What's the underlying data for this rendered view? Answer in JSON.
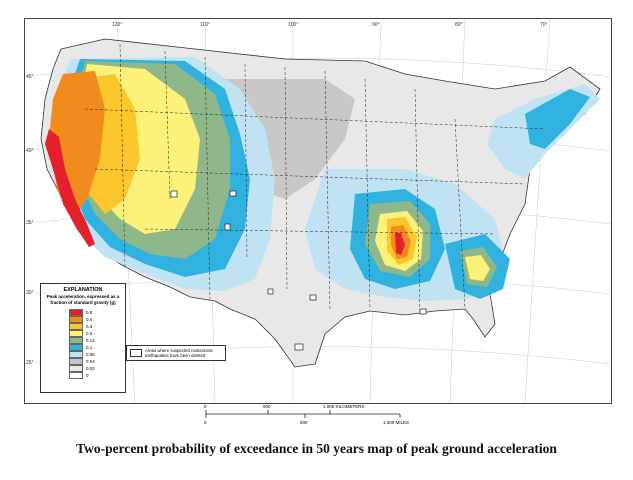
{
  "caption": "Two-percent probability of exceedance in 50 years map of peak ground acceleration",
  "legend": {
    "title": "EXPLANATION",
    "subtitle": "Peak acceleration, expressed as a fraction of standard gravity (g)",
    "classes": [
      {
        "label": "0.8",
        "color": "#e4202a"
      },
      {
        "label": "0.4",
        "color": "#f28b1d"
      },
      {
        "label": "0.3",
        "color": "#fbc52c"
      },
      {
        "label": "0.2",
        "color": "#fdf17a"
      },
      {
        "label": "0.14",
        "color": "#8fb88a"
      },
      {
        "label": "0.1",
        "color": "#2fb2df"
      },
      {
        "label": "0.06",
        "color": "#bfe3f2"
      },
      {
        "label": "0.04",
        "color": "#c4c4c4"
      },
      {
        "label": "0.02",
        "color": "#e8e8e8"
      },
      {
        "label": "0",
        "color": "#ffffff"
      }
    ],
    "deleted_note": "Areas where suspected nontectonic earthquakes have been deleted"
  },
  "longitude_labels": [
    "120°",
    "110°",
    "100°",
    "90°",
    "80°",
    "70°"
  ],
  "latitude_labels": [
    "45°",
    "40°",
    "35°",
    "30°",
    "25°"
  ],
  "scale_bar": {
    "km_ticks": [
      "0",
      "500",
      "1,000 KILOMETERS"
    ],
    "mi_ticks": [
      "0",
      "500",
      "1,000 MILES"
    ]
  }
}
